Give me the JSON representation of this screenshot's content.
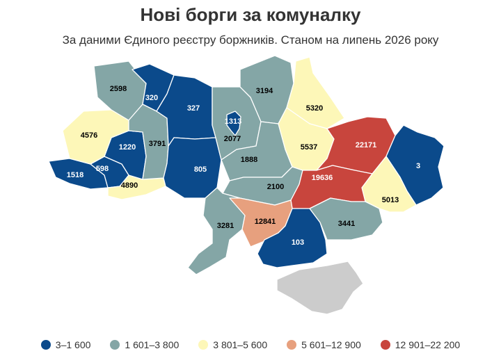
{
  "title": "Нові борги за комуналку",
  "subtitle": "За даними Єдиного реєстру боржників. Станом на липень 2026 року",
  "bins": [
    {
      "label": "3–1 600",
      "color": "#0b4a8b"
    },
    {
      "label": "1 601–3 800",
      "color": "#84a6a6"
    },
    {
      "label": "3 801–5 600",
      "color": "#fdf7b8"
    },
    {
      "label": "5 601–12 900",
      "color": "#e7a07e"
    },
    {
      "label": "12 901–22 200",
      "color": "#c8453d"
    }
  ],
  "nodata_color": "#cccccc",
  "regions": [
    {
      "value": "2598",
      "bin": 1
    },
    {
      "value": "320",
      "bin": 0
    },
    {
      "value": "327",
      "bin": 0
    },
    {
      "value": "3194",
      "bin": 1
    },
    {
      "value": "4576",
      "bin": 2
    },
    {
      "value": "3791",
      "bin": 1
    },
    {
      "value": "1313",
      "bin": 0
    },
    {
      "value": "2077",
      "bin": 1
    },
    {
      "value": "5320",
      "bin": 2
    },
    {
      "value": "1220",
      "bin": 0
    },
    {
      "value": "598",
      "bin": 0
    },
    {
      "value": "1518",
      "bin": 0
    },
    {
      "value": "4890",
      "bin": 2
    },
    {
      "value": "805",
      "bin": 0
    },
    {
      "value": "1888",
      "bin": 1
    },
    {
      "value": "5537",
      "bin": 2
    },
    {
      "value": "22171",
      "bin": 4
    },
    {
      "value": "3",
      "bin": 0
    },
    {
      "value": "2100",
      "bin": 1
    },
    {
      "value": "19636",
      "bin": 4
    },
    {
      "value": "5013",
      "bin": 2
    },
    {
      "value": "3281",
      "bin": 1
    },
    {
      "value": "12841",
      "bin": 3
    },
    {
      "value": "3441",
      "bin": 1
    },
    {
      "value": "103",
      "bin": 0
    }
  ]
}
